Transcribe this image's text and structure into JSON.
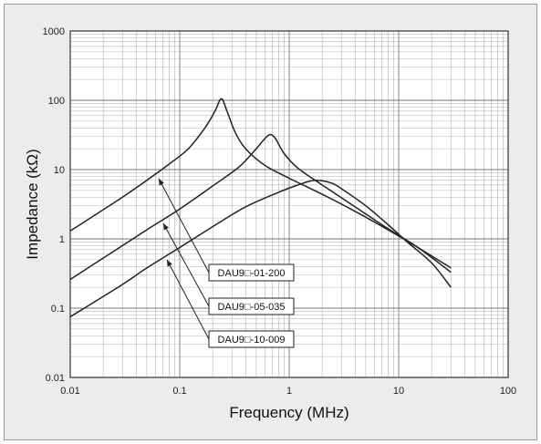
{
  "chart_data": {
    "type": "line",
    "xlabel": "Frequency (MHz)",
    "ylabel": "Impedance (kΩ)",
    "x_scale": "log",
    "y_scale": "log",
    "xlim": [
      0.01,
      100
    ],
    "ylim": [
      0.01,
      1000
    ],
    "x_ticks": [
      "0.01",
      "0.1",
      "1",
      "10",
      "100"
    ],
    "y_ticks": [
      "0.01",
      "0.1",
      "1",
      "10",
      "100",
      "1000"
    ],
    "grid": true,
    "series": [
      {
        "name": "DAU9□-01-200",
        "x": [
          0.01,
          0.03,
          0.05,
          0.08,
          0.12,
          0.17,
          0.21,
          0.24,
          0.27,
          0.32,
          0.4,
          0.6,
          1,
          2,
          4,
          8,
          15,
          30
        ],
        "y": [
          1.3,
          4.0,
          7.0,
          12,
          20,
          40,
          70,
          105,
          70,
          35,
          20,
          11.5,
          7.5,
          4.4,
          2.5,
          1.35,
          0.75,
          0.38
        ]
      },
      {
        "name": "DAU9□-05-035",
        "x": [
          0.01,
          0.03,
          0.05,
          0.1,
          0.2,
          0.35,
          0.5,
          0.6,
          0.67,
          0.75,
          0.9,
          1.2,
          2,
          4,
          8,
          15,
          30
        ],
        "y": [
          0.26,
          0.8,
          1.35,
          2.7,
          5.8,
          11,
          20,
          28,
          32,
          28,
          17,
          10.5,
          6.0,
          2.9,
          1.4,
          0.75,
          0.33
        ]
      },
      {
        "name": "DAU9□-10-009",
        "x": [
          0.01,
          0.03,
          0.05,
          0.1,
          0.2,
          0.4,
          0.8,
          1.2,
          1.6,
          2,
          2.5,
          3,
          5,
          8,
          12,
          20,
          30
        ],
        "y": [
          0.075,
          0.22,
          0.38,
          0.75,
          1.5,
          2.9,
          4.7,
          6.0,
          6.9,
          6.9,
          6.3,
          5.3,
          3.0,
          1.6,
          0.9,
          0.45,
          0.2
        ]
      }
    ],
    "annotations": [
      "DAU9□-01-200",
      "DAU9□-05-035",
      "DAU9□-10-009"
    ]
  }
}
